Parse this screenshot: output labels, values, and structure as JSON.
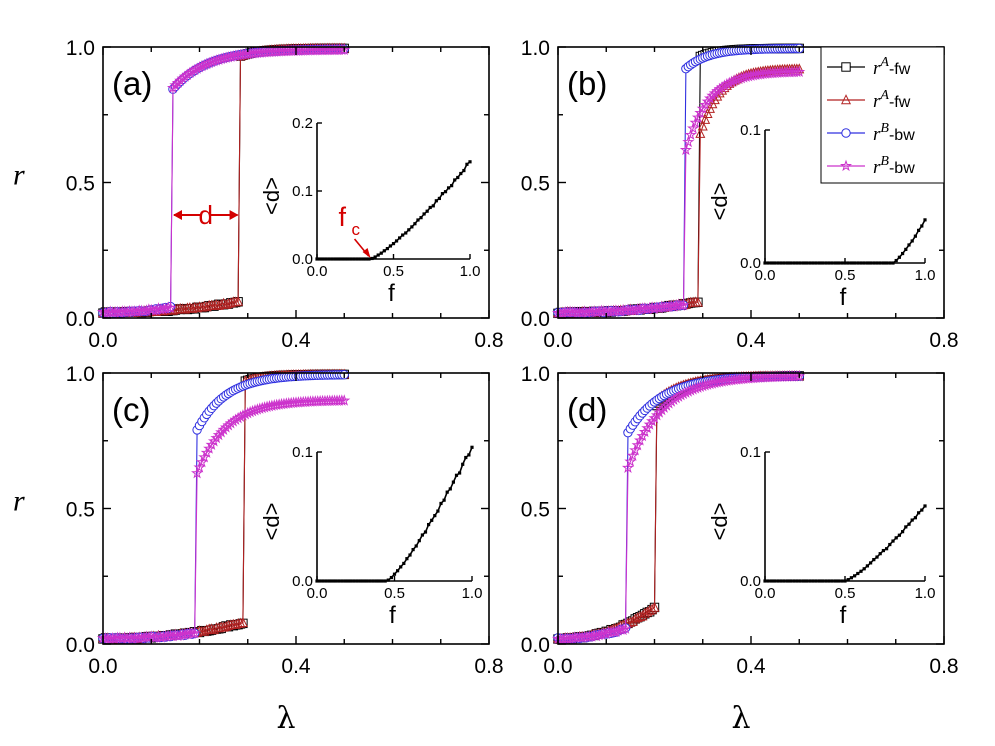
{
  "chart_data": {
    "type": "line",
    "layout": "2x2 grid of panels with insets",
    "main_xrange": [
      0.0,
      0.8
    ],
    "main_yrange": [
      0.0,
      1.0
    ],
    "main_xticks": [
      "0.0",
      "0.4",
      "0.8"
    ],
    "main_yticks": [
      "0.0",
      "0.5",
      "1.0"
    ],
    "ylabel": "r",
    "xlabel": "λ",
    "inset_xticks": [
      "0.0",
      "0.5",
      "1.0"
    ],
    "inset_xlabel": "f",
    "inset_ylabel": "<d>",
    "colors": {
      "fwA": "#000000",
      "fwA2": "#b22222",
      "bwB": "#3030e0",
      "bwB2": "#cc33cc",
      "inset": "#000000",
      "annot": "#d40000"
    },
    "legend": [
      {
        "base": "r",
        "sup": "A",
        "suffix": "-fw",
        "marker": "square",
        "color": "#000000"
      },
      {
        "base": "r",
        "sup": "A",
        "suffix": "-fw",
        "marker": "triangle",
        "color": "#b22222"
      },
      {
        "base": "r",
        "sup": "B",
        "suffix": "-bw",
        "marker": "circle",
        "color": "#3030e0"
      },
      {
        "base": "r",
        "sup": "B",
        "suffix": "-bw",
        "marker": "star",
        "color": "#cc33cc"
      }
    ],
    "panels": [
      {
        "label": "(a)",
        "lam_fw": 0.283,
        "lam_bw": 0.143,
        "fw_low": [
          0.02,
          0.06
        ],
        "fw_high": [
          0.965,
          0.995
        ],
        "bw_low": [
          0.02,
          0.04
        ],
        "sqA_high": [
          0.965,
          0.995
        ],
        "triA_high": [
          0.965,
          0.995
        ],
        "circB_high": [
          0.84,
          0.993
        ],
        "starB_high": [
          0.845,
          0.99
        ],
        "inset": {
          "ymax": 0.2,
          "yticks": [
            "0.0",
            "0.1",
            "0.2"
          ],
          "fc": 0.35,
          "fend": 0.142
        },
        "annotations": {
          "d_label": "d",
          "fc_label": "f",
          "fc_sub": "c"
        }
      },
      {
        "label": "(b)",
        "lam_fw": 0.295,
        "lam_bw": 0.265,
        "fw_low": [
          0.02,
          0.06
        ],
        "fw_high": [
          0.97,
          0.995
        ],
        "bw_low": [
          0.02,
          0.05
        ],
        "sqA_high": [
          0.965,
          0.995
        ],
        "triA_high": [
          0.68,
          0.92
        ],
        "circB_high": [
          0.92,
          0.995
        ],
        "starB_high": [
          0.62,
          0.91
        ],
        "inset": {
          "ymax": 0.1,
          "yticks": [
            "0.0",
            "0.1"
          ],
          "fc": 0.8,
          "fend": 0.032
        },
        "annotations": null
      },
      {
        "label": "(c)",
        "lam_fw": 0.295,
        "lam_bw": 0.195,
        "fw_low": [
          0.02,
          0.08
        ],
        "fw_high": [
          0.97,
          0.995
        ],
        "bw_low": [
          0.02,
          0.04
        ],
        "sqA_high": [
          0.97,
          0.995
        ],
        "triA_high": [
          0.97,
          0.995
        ],
        "circB_high": [
          0.79,
          0.995
        ],
        "starB_high": [
          0.63,
          0.9
        ],
        "inset": {
          "ymax": 0.1,
          "yticks": [
            "0.0",
            "0.1"
          ],
          "fc": 0.45,
          "fend": 0.104
        },
        "annotations": null
      },
      {
        "label": "(d)",
        "lam_fw": 0.205,
        "lam_bw": 0.145,
        "fw_low": [
          0.02,
          0.14
        ],
        "fw_high": [
          0.9,
          0.99
        ],
        "bw_low": [
          0.02,
          0.06
        ],
        "sqA_high": [
          0.88,
          0.99
        ],
        "triA_high": [
          0.9,
          0.99
        ],
        "circB_high": [
          0.78,
          0.99
        ],
        "starB_high": [
          0.65,
          0.99
        ],
        "inset": {
          "ymax": 0.1,
          "yticks": [
            "0.0",
            "0.1"
          ],
          "fc": 0.5,
          "fend": 0.058
        },
        "annotations": null
      }
    ]
  }
}
